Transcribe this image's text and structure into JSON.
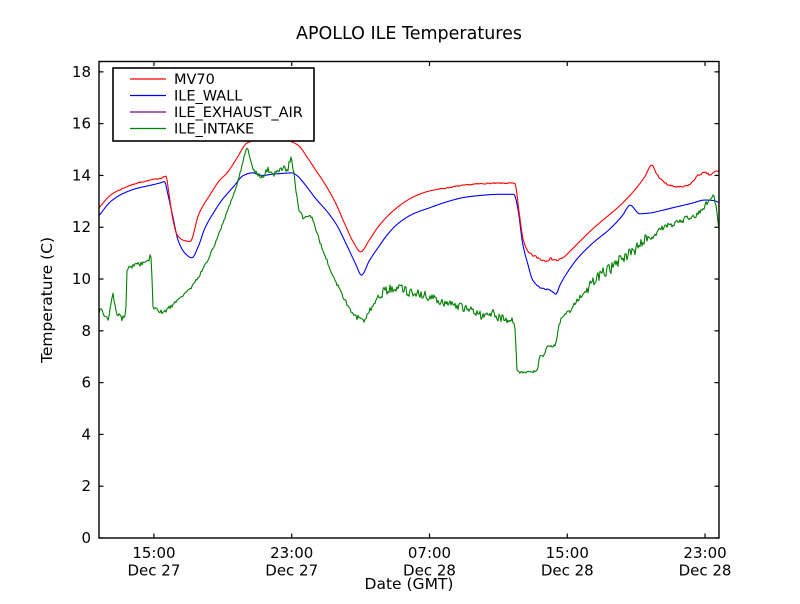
{
  "chart_data": {
    "type": "line",
    "title": "APOLLO ILE Temperatures",
    "xlabel": "Date (GMT)",
    "ylabel": "Temperature (C)",
    "x_unit_note": "hours since Dec 27 12:00 GMT",
    "xlim": [
      -0.19,
      35.81
    ],
    "ylim": [
      0,
      18.4
    ],
    "yticks": [
      0,
      2,
      4,
      6,
      8,
      10,
      12,
      14,
      16,
      18
    ],
    "xticks": [
      {
        "t": 3,
        "time": "15:00",
        "date": "Dec 27"
      },
      {
        "t": 11,
        "time": "23:00",
        "date": "Dec 27"
      },
      {
        "t": 19,
        "time": "07:00",
        "date": "Dec 28"
      },
      {
        "t": 27,
        "time": "15:00",
        "date": "Dec 28"
      },
      {
        "t": 35,
        "time": "23:00",
        "date": "Dec 28"
      }
    ],
    "grid": false,
    "legend_position": "upper left",
    "background": "#ffffff",
    "frame_color": "#000000",
    "series": [
      {
        "name": "MV70",
        "color": "#ff0000",
        "noise": [
          [
            1.0,
            3.7,
            0.02
          ],
          [
            19.5,
            23.9,
            0.02
          ],
          [
            24.8,
            26.7,
            0.05
          ],
          [
            31.95,
            35.81,
            0.035
          ]
        ],
        "points": [
          [
            -0.19,
            12.75
          ],
          [
            0.5,
            13.25
          ],
          [
            1.2,
            13.5
          ],
          [
            2.0,
            13.7
          ],
          [
            2.8,
            13.82
          ],
          [
            3.4,
            13.9
          ],
          [
            3.7,
            13.97
          ],
          [
            3.85,
            13.4
          ],
          [
            4.1,
            12.3
          ],
          [
            4.35,
            11.7
          ],
          [
            4.7,
            11.5
          ],
          [
            5.1,
            11.45
          ],
          [
            5.6,
            12.5
          ],
          [
            6.3,
            13.3
          ],
          [
            6.8,
            13.8
          ],
          [
            7.25,
            14.1
          ],
          [
            7.8,
            14.65
          ],
          [
            8.4,
            15.25
          ],
          [
            9.0,
            15.38
          ],
          [
            9.6,
            15.44
          ],
          [
            10.3,
            15.45
          ],
          [
            11.0,
            15.3
          ],
          [
            11.4,
            15.15
          ],
          [
            11.9,
            14.7
          ],
          [
            12.4,
            14.2
          ],
          [
            12.85,
            13.75
          ],
          [
            13.5,
            13.0
          ],
          [
            14.1,
            12.1
          ],
          [
            14.6,
            11.4
          ],
          [
            15.0,
            11.05
          ],
          [
            15.5,
            11.5
          ],
          [
            16.0,
            12.0
          ],
          [
            16.6,
            12.45
          ],
          [
            17.1,
            12.75
          ],
          [
            18.0,
            13.15
          ],
          [
            19.0,
            13.4
          ],
          [
            20.0,
            13.52
          ],
          [
            21.0,
            13.62
          ],
          [
            22.0,
            13.68
          ],
          [
            23.0,
            13.7
          ],
          [
            23.95,
            13.7
          ],
          [
            24.2,
            12.6
          ],
          [
            24.45,
            11.5
          ],
          [
            24.8,
            11.0
          ],
          [
            25.2,
            10.85
          ],
          [
            25.7,
            10.72
          ],
          [
            26.1,
            10.78
          ],
          [
            26.4,
            10.72
          ],
          [
            26.7,
            10.8
          ],
          [
            27.2,
            11.1
          ],
          [
            27.8,
            11.5
          ],
          [
            28.5,
            11.95
          ],
          [
            29.2,
            12.35
          ],
          [
            30.0,
            12.8
          ],
          [
            30.8,
            13.35
          ],
          [
            31.5,
            13.95
          ],
          [
            31.9,
            14.4
          ],
          [
            32.2,
            14.05
          ],
          [
            32.6,
            13.75
          ],
          [
            33.0,
            13.6
          ],
          [
            33.6,
            13.55
          ],
          [
            34.1,
            13.65
          ],
          [
            34.6,
            14.0
          ],
          [
            35.0,
            14.1
          ],
          [
            35.3,
            14.02
          ],
          [
            35.6,
            14.15
          ],
          [
            35.81,
            14.18
          ]
        ]
      },
      {
        "name": "ILE_WALL",
        "color": "#0000ff",
        "noise": [
          [
            25.2,
            26.4,
            0.02
          ]
        ],
        "points": [
          [
            -0.19,
            12.45
          ],
          [
            0.5,
            13.0
          ],
          [
            1.2,
            13.3
          ],
          [
            2.0,
            13.5
          ],
          [
            2.8,
            13.62
          ],
          [
            3.3,
            13.7
          ],
          [
            3.62,
            13.76
          ],
          [
            3.8,
            13.3
          ],
          [
            4.1,
            12.4
          ],
          [
            4.4,
            11.5
          ],
          [
            4.8,
            11.0
          ],
          [
            5.2,
            10.82
          ],
          [
            5.6,
            11.3
          ],
          [
            5.95,
            11.95
          ],
          [
            6.5,
            12.6
          ],
          [
            6.95,
            13.05
          ],
          [
            7.6,
            13.55
          ],
          [
            8.2,
            14.0
          ],
          [
            8.7,
            14.1
          ],
          [
            9.3,
            14.0
          ],
          [
            9.9,
            14.05
          ],
          [
            10.5,
            14.08
          ],
          [
            11.0,
            14.1
          ],
          [
            11.3,
            14.0
          ],
          [
            11.65,
            13.75
          ],
          [
            12.4,
            13.1
          ],
          [
            13.0,
            12.65
          ],
          [
            13.6,
            12.1
          ],
          [
            14.2,
            11.3
          ],
          [
            14.7,
            10.6
          ],
          [
            15.05,
            10.15
          ],
          [
            15.5,
            10.7
          ],
          [
            16.0,
            11.2
          ],
          [
            16.6,
            11.75
          ],
          [
            17.1,
            12.1
          ],
          [
            18.0,
            12.5
          ],
          [
            19.0,
            12.75
          ],
          [
            20.0,
            12.98
          ],
          [
            21.0,
            13.15
          ],
          [
            22.0,
            13.23
          ],
          [
            23.0,
            13.27
          ],
          [
            23.9,
            13.27
          ],
          [
            24.15,
            12.65
          ],
          [
            24.4,
            11.4
          ],
          [
            24.7,
            10.6
          ],
          [
            25.0,
            9.95
          ],
          [
            25.5,
            9.65
          ],
          [
            26.0,
            9.57
          ],
          [
            26.33,
            9.42
          ],
          [
            26.6,
            9.8
          ],
          [
            27.0,
            10.25
          ],
          [
            27.6,
            10.8
          ],
          [
            28.5,
            11.4
          ],
          [
            29.5,
            11.95
          ],
          [
            30.2,
            12.45
          ],
          [
            30.65,
            12.85
          ],
          [
            31.2,
            12.52
          ],
          [
            31.8,
            12.55
          ],
          [
            32.5,
            12.65
          ],
          [
            33.3,
            12.78
          ],
          [
            34.2,
            12.92
          ],
          [
            35.0,
            13.05
          ],
          [
            35.5,
            13.03
          ],
          [
            35.81,
            12.95
          ]
        ]
      },
      {
        "name": "ILE_EXHAUST_AIR",
        "color": "#800080",
        "note": "legend entry only - no separate curve visible in plot (hidden behind ILE_WALL)",
        "noise": [],
        "points": []
      },
      {
        "name": "ILE_INTAKE",
        "color": "#008000",
        "noise": [
          [
            -0.2,
            1.42,
            0.13
          ],
          [
            1.42,
            2.85,
            0.11
          ],
          [
            2.95,
            4.4,
            0.07
          ],
          [
            4.4,
            8.3,
            0.05
          ],
          [
            8.5,
            11.2,
            0.11
          ],
          [
            11.2,
            14.6,
            0.07
          ],
          [
            14.6,
            16.2,
            0.12
          ],
          [
            16.2,
            18.6,
            0.18
          ],
          [
            18.6,
            23.85,
            0.16
          ],
          [
            24.08,
            25.3,
            0.04
          ],
          [
            25.3,
            26.4,
            0.05
          ],
          [
            26.5,
            28.0,
            0.09
          ],
          [
            28.0,
            31.6,
            0.22
          ],
          [
            31.6,
            35.1,
            0.12
          ],
          [
            35.1,
            35.81,
            0.08
          ]
        ],
        "points": [
          [
            -0.19,
            8.8
          ],
          [
            0.1,
            8.65
          ],
          [
            0.35,
            8.45
          ],
          [
            0.6,
            9.35
          ],
          [
            0.75,
            9.0
          ],
          [
            0.95,
            8.55
          ],
          [
            1.2,
            8.5
          ],
          [
            1.35,
            8.6
          ],
          [
            1.45,
            10.35
          ],
          [
            1.9,
            10.55
          ],
          [
            2.4,
            10.6
          ],
          [
            2.7,
            10.75
          ],
          [
            2.85,
            10.9
          ],
          [
            2.93,
            8.95
          ],
          [
            3.2,
            8.8
          ],
          [
            3.55,
            8.72
          ],
          [
            3.9,
            8.9
          ],
          [
            4.2,
            9.05
          ],
          [
            4.45,
            9.25
          ],
          [
            5.0,
            9.55
          ],
          [
            5.6,
            10.1
          ],
          [
            6.2,
            10.85
          ],
          [
            6.8,
            11.8
          ],
          [
            7.25,
            12.6
          ],
          [
            7.65,
            13.3
          ],
          [
            8.05,
            14.2
          ],
          [
            8.42,
            15.05
          ],
          [
            8.7,
            14.3
          ],
          [
            9.0,
            14.05
          ],
          [
            9.25,
            13.9
          ],
          [
            9.6,
            14.25
          ],
          [
            9.9,
            14.05
          ],
          [
            10.2,
            14.2
          ],
          [
            10.5,
            14.3
          ],
          [
            10.75,
            14.2
          ],
          [
            10.93,
            14.65
          ],
          [
            11.1,
            14.2
          ],
          [
            11.25,
            13.4
          ],
          [
            11.45,
            12.65
          ],
          [
            11.75,
            12.35
          ],
          [
            12.1,
            12.4
          ],
          [
            12.5,
            11.7
          ],
          [
            13.0,
            10.8
          ],
          [
            13.5,
            10.0
          ],
          [
            14.0,
            9.3
          ],
          [
            14.4,
            8.8
          ],
          [
            14.8,
            8.5
          ],
          [
            15.2,
            8.45
          ],
          [
            15.6,
            8.9
          ],
          [
            16.1,
            9.35
          ],
          [
            16.6,
            9.6
          ],
          [
            17.2,
            9.65
          ],
          [
            17.8,
            9.5
          ],
          [
            18.4,
            9.45
          ],
          [
            19.0,
            9.3
          ],
          [
            19.8,
            9.1
          ],
          [
            20.6,
            8.95
          ],
          [
            21.4,
            8.85
          ],
          [
            22.0,
            8.6
          ],
          [
            22.5,
            8.7
          ],
          [
            23.1,
            8.5
          ],
          [
            23.6,
            8.4
          ],
          [
            23.9,
            8.3
          ],
          [
            23.98,
            8.0
          ],
          [
            24.08,
            6.45
          ],
          [
            24.5,
            6.38
          ],
          [
            24.9,
            6.42
          ],
          [
            25.25,
            6.45
          ],
          [
            25.4,
            7.0
          ],
          [
            25.65,
            7.05
          ],
          [
            25.85,
            7.38
          ],
          [
            26.3,
            7.45
          ],
          [
            26.55,
            8.3
          ],
          [
            26.8,
            8.55
          ],
          [
            27.2,
            8.8
          ],
          [
            27.6,
            9.2
          ],
          [
            28.3,
            9.7
          ],
          [
            29.0,
            10.2
          ],
          [
            29.6,
            10.45
          ],
          [
            30.2,
            10.8
          ],
          [
            30.9,
            11.1
          ],
          [
            31.4,
            11.5
          ],
          [
            31.9,
            11.65
          ],
          [
            32.4,
            11.9
          ],
          [
            33.0,
            12.1
          ],
          [
            33.8,
            12.3
          ],
          [
            34.5,
            12.5
          ],
          [
            35.0,
            12.85
          ],
          [
            35.3,
            13.1
          ],
          [
            35.45,
            13.25
          ],
          [
            35.6,
            12.9
          ],
          [
            35.72,
            12.4
          ],
          [
            35.81,
            12.0
          ]
        ]
      }
    ],
    "legend": {
      "entries": [
        "MV70",
        "ILE_WALL",
        "ILE_EXHAUST_AIR",
        "ILE_INTAKE"
      ]
    }
  }
}
